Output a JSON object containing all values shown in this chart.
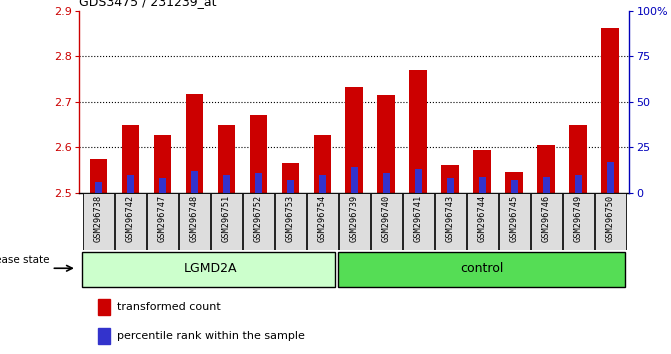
{
  "title": "GDS3475 / 231239_at",
  "samples": [
    "GSM296738",
    "GSM296742",
    "GSM296747",
    "GSM296748",
    "GSM296751",
    "GSM296752",
    "GSM296753",
    "GSM296754",
    "GSM296739",
    "GSM296740",
    "GSM296741",
    "GSM296743",
    "GSM296744",
    "GSM296745",
    "GSM296746",
    "GSM296749",
    "GSM296750"
  ],
  "transformed_count": [
    2.575,
    2.648,
    2.628,
    2.718,
    2.648,
    2.672,
    2.565,
    2.628,
    2.732,
    2.715,
    2.77,
    2.562,
    2.595,
    2.545,
    2.605,
    2.648,
    2.862
  ],
  "percentile_rank": [
    6,
    10,
    8,
    12,
    10,
    11,
    7,
    10,
    14,
    11,
    13,
    8,
    9,
    7,
    9,
    10,
    17
  ],
  "lgmd2a_count": 8,
  "control_count": 9,
  "bar_color": "#cc0000",
  "blue_color": "#3333cc",
  "ylim_left": [
    2.5,
    2.9
  ],
  "ylim_right": [
    0,
    100
  ],
  "yticks_left": [
    2.5,
    2.6,
    2.7,
    2.8,
    2.9
  ],
  "yticks_right": [
    0,
    25,
    50,
    75,
    100
  ],
  "ytick_right_labels": [
    "0",
    "25",
    "50",
    "75",
    "100%"
  ],
  "bar_width": 0.55,
  "lgmd2a_color": "#ccffcc",
  "control_color": "#55dd55",
  "disease_state_label": "disease state",
  "legend_items": [
    "transformed count",
    "percentile rank within the sample"
  ],
  "left_axis_color": "#cc0000",
  "right_axis_color": "#0000bb",
  "tick_label_bg": "#dddddd"
}
